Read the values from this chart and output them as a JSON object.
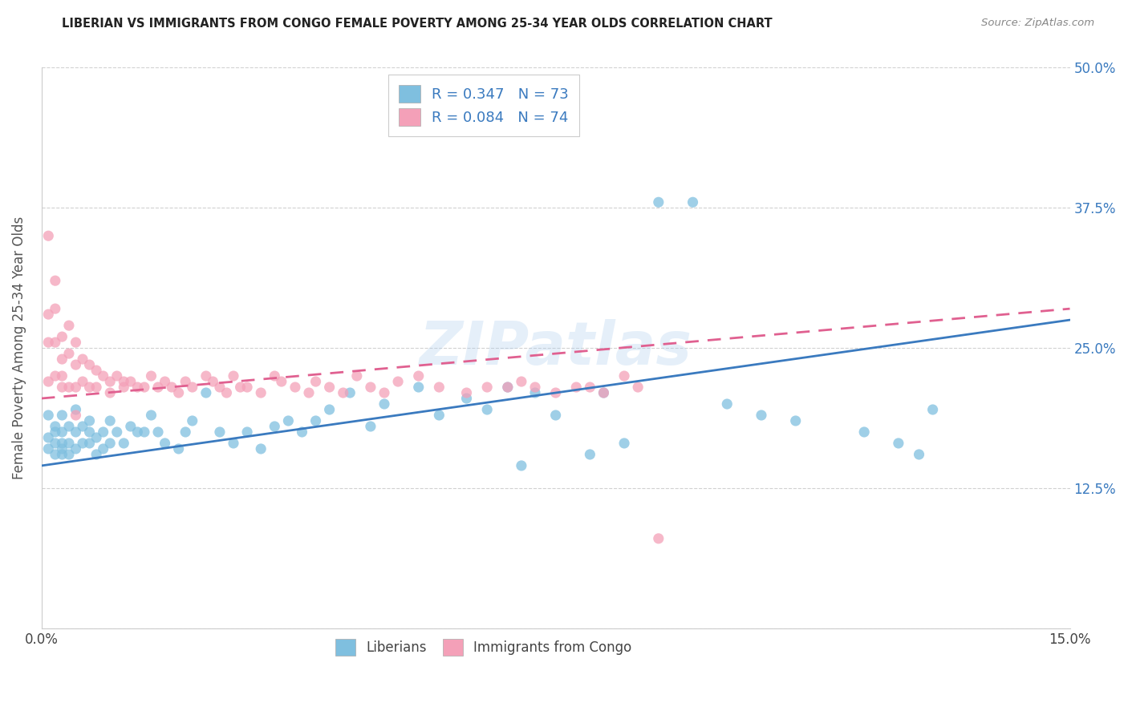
{
  "title": "LIBERIAN VS IMMIGRANTS FROM CONGO FEMALE POVERTY AMONG 25-34 YEAR OLDS CORRELATION CHART",
  "source": "Source: ZipAtlas.com",
  "ylabel": "Female Poverty Among 25-34 Year Olds",
  "xlim": [
    0.0,
    0.15
  ],
  "ylim": [
    0.0,
    0.5
  ],
  "legend1_label": "R = 0.347   N = 73",
  "legend2_label": "R = 0.084   N = 74",
  "legend_bottom1": "Liberians",
  "legend_bottom2": "Immigrants from Congo",
  "blue_color": "#7fbfdf",
  "pink_color": "#f4a0b8",
  "blue_line_color": "#3a7abf",
  "pink_line_color": "#e06090",
  "background_color": "#ffffff",
  "grid_color": "#cccccc",
  "watermark": "ZIPatlas",
  "blue_line_x0": 0.0,
  "blue_line_y0": 0.145,
  "blue_line_x1": 0.15,
  "blue_line_y1": 0.275,
  "pink_line_x0": 0.0,
  "pink_line_y0": 0.205,
  "pink_line_x1": 0.15,
  "pink_line_y1": 0.285,
  "lib_x": [
    0.001,
    0.001,
    0.001,
    0.002,
    0.002,
    0.002,
    0.002,
    0.003,
    0.003,
    0.003,
    0.003,
    0.003,
    0.004,
    0.004,
    0.004,
    0.005,
    0.005,
    0.005,
    0.006,
    0.006,
    0.007,
    0.007,
    0.007,
    0.008,
    0.008,
    0.009,
    0.009,
    0.01,
    0.01,
    0.011,
    0.012,
    0.013,
    0.014,
    0.015,
    0.016,
    0.017,
    0.018,
    0.02,
    0.021,
    0.022,
    0.024,
    0.026,
    0.028,
    0.03,
    0.032,
    0.034,
    0.036,
    0.038,
    0.04,
    0.042,
    0.045,
    0.048,
    0.05,
    0.055,
    0.058,
    0.062,
    0.065,
    0.068,
    0.072,
    0.075,
    0.082,
    0.09,
    0.095,
    0.1,
    0.105,
    0.11,
    0.12,
    0.125,
    0.128,
    0.13,
    0.07,
    0.08,
    0.085
  ],
  "lib_y": [
    0.17,
    0.19,
    0.16,
    0.175,
    0.165,
    0.18,
    0.155,
    0.16,
    0.19,
    0.175,
    0.165,
    0.155,
    0.18,
    0.165,
    0.155,
    0.195,
    0.175,
    0.16,
    0.18,
    0.165,
    0.175,
    0.165,
    0.185,
    0.17,
    0.155,
    0.175,
    0.16,
    0.185,
    0.165,
    0.175,
    0.165,
    0.18,
    0.175,
    0.175,
    0.19,
    0.175,
    0.165,
    0.16,
    0.175,
    0.185,
    0.21,
    0.175,
    0.165,
    0.175,
    0.16,
    0.18,
    0.185,
    0.175,
    0.185,
    0.195,
    0.21,
    0.18,
    0.2,
    0.215,
    0.19,
    0.205,
    0.195,
    0.215,
    0.21,
    0.19,
    0.21,
    0.38,
    0.38,
    0.2,
    0.19,
    0.185,
    0.175,
    0.165,
    0.155,
    0.195,
    0.145,
    0.155,
    0.165
  ],
  "con_x": [
    0.001,
    0.001,
    0.001,
    0.001,
    0.002,
    0.002,
    0.002,
    0.002,
    0.003,
    0.003,
    0.003,
    0.003,
    0.004,
    0.004,
    0.004,
    0.005,
    0.005,
    0.005,
    0.005,
    0.006,
    0.006,
    0.007,
    0.007,
    0.008,
    0.008,
    0.009,
    0.01,
    0.01,
    0.011,
    0.012,
    0.012,
    0.013,
    0.014,
    0.015,
    0.016,
    0.017,
    0.018,
    0.019,
    0.02,
    0.021,
    0.022,
    0.024,
    0.025,
    0.026,
    0.027,
    0.028,
    0.029,
    0.03,
    0.032,
    0.034,
    0.035,
    0.037,
    0.039,
    0.04,
    0.042,
    0.044,
    0.046,
    0.048,
    0.05,
    0.052,
    0.055,
    0.058,
    0.062,
    0.065,
    0.068,
    0.07,
    0.072,
    0.075,
    0.078,
    0.08,
    0.082,
    0.085,
    0.087,
    0.09
  ],
  "con_y": [
    0.35,
    0.28,
    0.255,
    0.22,
    0.31,
    0.285,
    0.255,
    0.225,
    0.26,
    0.24,
    0.225,
    0.215,
    0.27,
    0.245,
    0.215,
    0.255,
    0.235,
    0.215,
    0.19,
    0.24,
    0.22,
    0.235,
    0.215,
    0.23,
    0.215,
    0.225,
    0.22,
    0.21,
    0.225,
    0.22,
    0.215,
    0.22,
    0.215,
    0.215,
    0.225,
    0.215,
    0.22,
    0.215,
    0.21,
    0.22,
    0.215,
    0.225,
    0.22,
    0.215,
    0.21,
    0.225,
    0.215,
    0.215,
    0.21,
    0.225,
    0.22,
    0.215,
    0.21,
    0.22,
    0.215,
    0.21,
    0.225,
    0.215,
    0.21,
    0.22,
    0.225,
    0.215,
    0.21,
    0.215,
    0.215,
    0.22,
    0.215,
    0.21,
    0.215,
    0.215,
    0.21,
    0.225,
    0.215,
    0.08
  ]
}
